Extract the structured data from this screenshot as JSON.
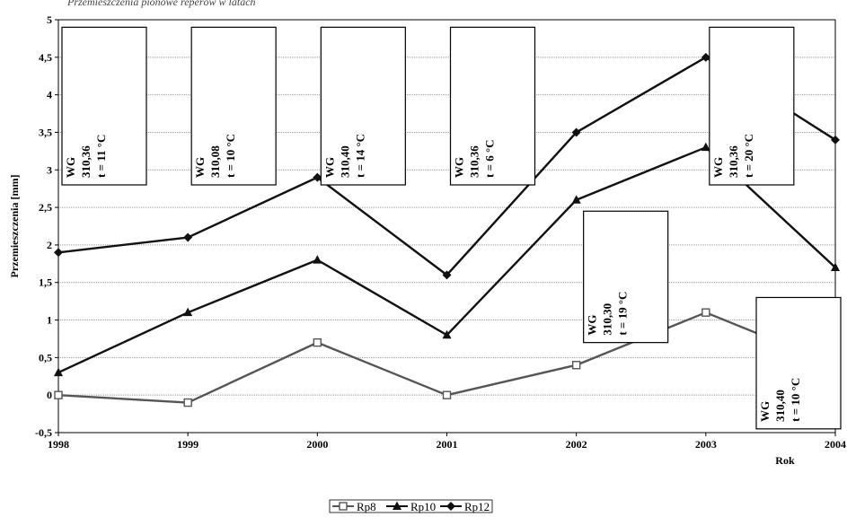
{
  "chart_data": {
    "type": "line",
    "top_note": "Przemieszczenia pionowe reperów w latach",
    "ylabel": "Przemieszczenia [mm]",
    "xlabel": "Rok",
    "ylim": [
      -0.5,
      5
    ],
    "xlim": [
      1998,
      2004
    ],
    "grid": true,
    "legend": "bottom-center",
    "x": [
      1998,
      1999,
      2000,
      2001,
      2002,
      2003,
      2004
    ],
    "x_tick_labels": [
      "1998",
      "1999",
      "2000",
      "2001",
      "2002",
      "2003",
      "2004"
    ],
    "y_ticks": [
      -0.5,
      0,
      0.5,
      1,
      1.5,
      2,
      2.5,
      3,
      3.5,
      4,
      4.5,
      5
    ],
    "y_tick_labels": [
      "-0,5",
      "0",
      "0,5",
      "1",
      "1,5",
      "2",
      "2,5",
      "3",
      "3,5",
      "4",
      "4,5",
      "5"
    ],
    "series": [
      {
        "name": "Rp8",
        "marker": "square-open",
        "color": "#555555",
        "values": [
          0,
          -0.1,
          0.7,
          0,
          0.4,
          1.1,
          0.4
        ]
      },
      {
        "name": "Rp10",
        "marker": "triangle",
        "color": "#111111",
        "values": [
          0.3,
          1.1,
          1.8,
          0.8,
          2.6,
          3.3,
          1.7
        ]
      },
      {
        "name": "Rp12",
        "marker": "diamond",
        "color": "#111111",
        "values": [
          1.9,
          2.1,
          2.9,
          1.6,
          3.5,
          4.5,
          3.4
        ]
      }
    ],
    "annotations": [
      {
        "lines": [
          "WG",
          "310,36",
          "t = 11 °C"
        ],
        "x": 1998,
        "y_top": 4.9,
        "y_bottom": 2.8
      },
      {
        "lines": [
          "WG",
          "310,08",
          "t = 10 °C"
        ],
        "x": 1999,
        "y_top": 4.9,
        "y_bottom": 2.8
      },
      {
        "lines": [
          "WG",
          "310,40",
          "t = 14 °C"
        ],
        "x": 2000,
        "y_top": 4.9,
        "y_bottom": 2.8
      },
      {
        "lines": [
          "WG",
          "310,36",
          "t = 6 °C"
        ],
        "x": 2001,
        "y_top": 4.9,
        "y_bottom": 2.8
      },
      {
        "lines": [
          "WG",
          "310,30",
          "t = 19 °C"
        ],
        "x": 2002,
        "y_top": 2.45,
        "y_bottom": 0.7
      },
      {
        "lines": [
          "WG",
          "310,36",
          "t = 20 °C"
        ],
        "x": 2003,
        "y_top": 4.9,
        "y_bottom": 2.8
      },
      {
        "lines": [
          "WG",
          "310,40",
          "t = 10 °C"
        ],
        "x": 2004,
        "y_top": 1.3,
        "y_bottom": -0.45
      }
    ]
  }
}
